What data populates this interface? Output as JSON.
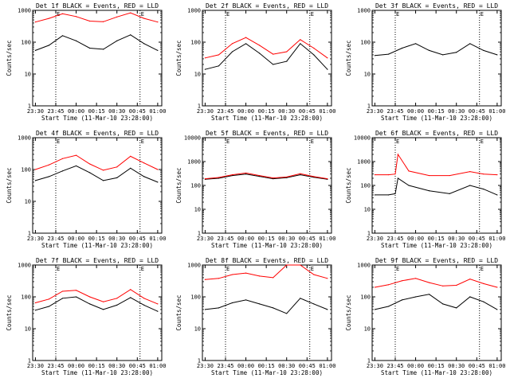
{
  "figure": {
    "ylabel": "Counts/sec",
    "xlabel": "Start Time (11-Mar-10 23:28:00)",
    "x_ticks": [
      "23:30",
      "23:45",
      "00:00",
      "00:15",
      "00:30",
      "00:45",
      "01:00"
    ],
    "y_ticks": [
      "1",
      "10",
      "100",
      "1000"
    ],
    "y_ticks_large": [
      "1",
      "10",
      "100",
      "1000",
      "10000"
    ],
    "colors": {
      "events": "#000000",
      "lld": "#ff0000",
      "axes": "#000000",
      "background": "#ffffff"
    }
  },
  "chart_data": [
    {
      "type": "line",
      "title": "Det 1f BLACK = Events, RED = LLD",
      "ylim": [
        1,
        1000
      ],
      "ytick_set": "small",
      "xlim_minutes": [
        -2,
        93
      ],
      "flags": [
        "E",
        "E"
      ],
      "dotted_x_minutes": [
        15,
        77
      ],
      "series": [
        {
          "name": "Events",
          "color": "#000000",
          "x": [
            0,
            10,
            20,
            30,
            40,
            50,
            60,
            70,
            80,
            90
          ],
          "y": [
            55,
            80,
            160,
            110,
            65,
            60,
            110,
            170,
            90,
            55
          ]
        },
        {
          "name": "LLD",
          "color": "#ff0000",
          "x": [
            0,
            10,
            20,
            30,
            40,
            50,
            60,
            70,
            80,
            90
          ],
          "y": [
            430,
            560,
            780,
            640,
            460,
            440,
            620,
            830,
            560,
            430
          ]
        }
      ]
    },
    {
      "type": "line",
      "title": "Det 2f BLACK = Events, RED = LLD",
      "ylim": [
        1,
        1000
      ],
      "ytick_set": "small",
      "xlim_minutes": [
        -2,
        93
      ],
      "flags": [
        "E",
        "E"
      ],
      "dotted_x_minutes": [
        15,
        77
      ],
      "series": [
        {
          "name": "Events",
          "color": "#000000",
          "x": [
            0,
            10,
            20,
            30,
            40,
            50,
            60,
            70,
            80,
            90
          ],
          "y": [
            14,
            18,
            50,
            90,
            45,
            20,
            25,
            90,
            40,
            14
          ]
        },
        {
          "name": "LLD",
          "color": "#ff0000",
          "x": [
            0,
            10,
            20,
            30,
            40,
            50,
            60,
            70,
            80,
            90
          ],
          "y": [
            32,
            40,
            90,
            140,
            80,
            42,
            50,
            120,
            65,
            32
          ]
        }
      ]
    },
    {
      "type": "line",
      "title": "Det 3f BLACK = Events, RED = LLD",
      "ylim": [
        1,
        1000
      ],
      "ytick_set": "small",
      "xlim_minutes": [
        -2,
        93
      ],
      "flags": [
        "E",
        "E"
      ],
      "dotted_x_minutes": [
        15,
        77
      ],
      "series": [
        {
          "name": "Events",
          "color": "#000000",
          "x": [
            0,
            10,
            20,
            30,
            40,
            50,
            60,
            70,
            80,
            90
          ],
          "y": [
            38,
            42,
            65,
            90,
            55,
            40,
            48,
            90,
            55,
            40
          ]
        }
      ]
    },
    {
      "type": "line",
      "title": "Det 4f BLACK = Events, RED = LLD",
      "ylim": [
        1,
        1000
      ],
      "ytick_set": "small",
      "xlim_minutes": [
        -2,
        93
      ],
      "flags": [
        "E",
        "E"
      ],
      "dotted_x_minutes": [
        15,
        77
      ],
      "series": [
        {
          "name": "Events",
          "color": "#000000",
          "x": [
            0,
            10,
            20,
            30,
            40,
            50,
            60,
            70,
            80,
            90
          ],
          "y": [
            45,
            60,
            90,
            130,
            80,
            45,
            55,
            110,
            60,
            40
          ]
        },
        {
          "name": "LLD",
          "color": "#ff0000",
          "x": [
            0,
            10,
            20,
            30,
            40,
            50,
            60,
            70,
            80,
            90
          ],
          "y": [
            100,
            140,
            220,
            280,
            150,
            95,
            120,
            260,
            160,
            100
          ]
        }
      ]
    },
    {
      "type": "line",
      "title": "Det 5f BLACK = Events, RED = LLD",
      "ylim": [
        1,
        10000
      ],
      "ytick_set": "large",
      "xlim_minutes": [
        -2,
        93
      ],
      "flags": [
        "E",
        "E"
      ],
      "dotted_x_minutes": [
        15,
        77
      ],
      "series": [
        {
          "name": "Events",
          "color": "#000000",
          "x": [
            0,
            10,
            20,
            30,
            40,
            50,
            60,
            70,
            80,
            90
          ],
          "y": [
            180,
            200,
            260,
            300,
            240,
            190,
            210,
            280,
            220,
            180
          ]
        },
        {
          "name": "LLD",
          "color": "#ff0000",
          "x": [
            0,
            10,
            20,
            30,
            40,
            50,
            60,
            70,
            80,
            90
          ],
          "y": [
            190,
            215,
            280,
            330,
            260,
            205,
            225,
            310,
            235,
            190
          ]
        }
      ]
    },
    {
      "type": "line",
      "title": "Det 6f BLACK = Events, RED = LLD",
      "ylim": [
        1,
        10000
      ],
      "ytick_set": "large",
      "xlim_minutes": [
        -2,
        93
      ],
      "flags": [
        "E",
        "E"
      ],
      "dotted_x_minutes": [
        15,
        77
      ],
      "series": [
        {
          "name": "Events",
          "color": "#000000",
          "x": [
            0,
            10,
            15,
            17,
            25,
            40,
            55,
            70,
            80,
            90
          ],
          "y": [
            40,
            40,
            45,
            200,
            100,
            60,
            45,
            100,
            70,
            40
          ]
        },
        {
          "name": "LLD",
          "color": "#ff0000",
          "x": [
            0,
            10,
            15,
            17,
            25,
            40,
            55,
            70,
            80,
            90
          ],
          "y": [
            280,
            280,
            300,
            2000,
            400,
            260,
            260,
            380,
            300,
            280
          ]
        }
      ]
    },
    {
      "type": "line",
      "title": "Det 7f BLACK = Events, RED = LLD",
      "ylim": [
        1,
        1000
      ],
      "ytick_set": "small",
      "xlim_minutes": [
        -2,
        93
      ],
      "flags": [
        "E",
        "E"
      ],
      "dotted_x_minutes": [
        15,
        77
      ],
      "series": [
        {
          "name": "Events",
          "color": "#000000",
          "x": [
            0,
            10,
            20,
            30,
            40,
            50,
            60,
            70,
            80,
            90
          ],
          "y": [
            38,
            50,
            90,
            100,
            60,
            40,
            55,
            95,
            55,
            35
          ]
        },
        {
          "name": "LLD",
          "color": "#ff0000",
          "x": [
            0,
            10,
            20,
            30,
            40,
            50,
            60,
            70,
            80,
            90
          ],
          "y": [
            65,
            85,
            150,
            160,
            100,
            70,
            90,
            170,
            90,
            60
          ]
        }
      ]
    },
    {
      "type": "line",
      "title": "Det 8f BLACK = Events, RED = LLD",
      "ylim": [
        1,
        1000
      ],
      "ytick_set": "small",
      "xlim_minutes": [
        -2,
        93
      ],
      "flags": [
        "E",
        "E"
      ],
      "dotted_x_minutes": [
        15,
        77
      ],
      "series": [
        {
          "name": "Events",
          "color": "#000000",
          "x": [
            0,
            10,
            20,
            30,
            40,
            50,
            60,
            70,
            80,
            90
          ],
          "y": [
            40,
            45,
            65,
            80,
            60,
            45,
            30,
            90,
            60,
            40
          ]
        },
        {
          "name": "LLD",
          "color": "#ff0000",
          "x": [
            0,
            10,
            20,
            30,
            40,
            50,
            60,
            70,
            80,
            90
          ],
          "y": [
            350,
            380,
            500,
            560,
            450,
            400,
            1000,
            1000,
            500,
            380
          ]
        }
      ]
    },
    {
      "type": "line",
      "title": "Det 9f BLACK = Events, RED = LLD",
      "ylim": [
        1,
        1000
      ],
      "ytick_set": "small",
      "xlim_minutes": [
        -2,
        93
      ],
      "flags": [
        "E",
        "E"
      ],
      "dotted_x_minutes": [
        15,
        77
      ],
      "series": [
        {
          "name": "Events",
          "color": "#000000",
          "x": [
            0,
            10,
            20,
            30,
            40,
            50,
            60,
            70,
            80,
            90
          ],
          "y": [
            40,
            50,
            80,
            100,
            120,
            60,
            45,
            100,
            70,
            40
          ]
        },
        {
          "name": "LLD",
          "color": "#ff0000",
          "x": [
            0,
            10,
            20,
            30,
            40,
            50,
            60,
            70,
            80,
            90
          ],
          "y": [
            200,
            240,
            320,
            380,
            280,
            220,
            230,
            360,
            260,
            200
          ]
        }
      ]
    }
  ]
}
